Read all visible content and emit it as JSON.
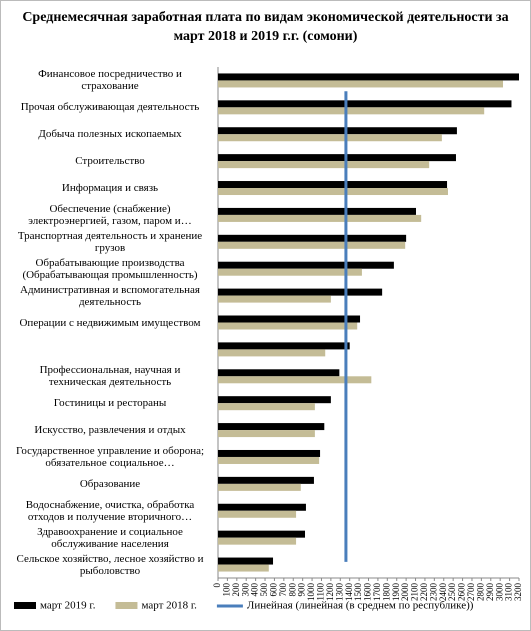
{
  "chart_data": {
    "type": "hbar",
    "title": "Среднемесячная заработная плата по видам экономической деятельности за март 2018 и 2019 г.г. (сомони)",
    "categories": [
      "Финансовое посредничество и страхование",
      "Прочая обслуживающая деятельность",
      "Добыча полезных ископаемых",
      "Строительство",
      "Информация и связь",
      "Обеспечение (снабжение) электроэнергией, газом, паром и…",
      "Транспортная деятельность и хранение грузов",
      "Обрабатывающие производства (Обрабатывающая промышленность)",
      "Административная и вспомогательная деятельность",
      "Операции с недвижимым имуществом",
      null,
      "Профессиональная, научная и техническая деятельность",
      "Гостиницы и рестораны",
      "Искусство, развлечения и отдых",
      "Государственное управление и оборона; обязательное социальное…",
      "Образование",
      "Водоснабжение, очистка, обработка отходов и получение вторичного…",
      "Здравоохранение и социальное обслуживание населения",
      "Сельское хозяйство, лесное хозяйство и рыболовство"
    ],
    "series": [
      {
        "name": "март 2019 г.",
        "color": "#000000",
        "values": [
          3200,
          3120,
          2540,
          2530,
          2435,
          2105,
          2000,
          1870,
          1745,
          1510,
          1400,
          1290,
          1200,
          1130,
          1085,
          1020,
          935,
          925,
          585
        ]
      },
      {
        "name": "март 2018 г.",
        "color": "#c4bc96",
        "values": [
          3030,
          2830,
          2380,
          2245,
          2445,
          2160,
          1990,
          1530,
          1200,
          1480,
          1140,
          1630,
          1030,
          1030,
          1075,
          880,
          830,
          830,
          540
        ]
      }
    ],
    "reference_line": {
      "name": "Линейная (линейная (в среднем по республике))",
      "value": 1360,
      "color": "#4a7ebb"
    },
    "xlim": [
      0,
      3200
    ],
    "xticks": [
      0,
      100,
      200,
      300,
      400,
      500,
      600,
      700,
      800,
      900,
      1000,
      1100,
      1200,
      1300,
      1400,
      1500,
      1600,
      1700,
      1800,
      1900,
      2000,
      2100,
      2200,
      2300,
      2400,
      2500,
      2600,
      2700,
      2800,
      2900,
      3000,
      3100,
      3200
    ]
  }
}
